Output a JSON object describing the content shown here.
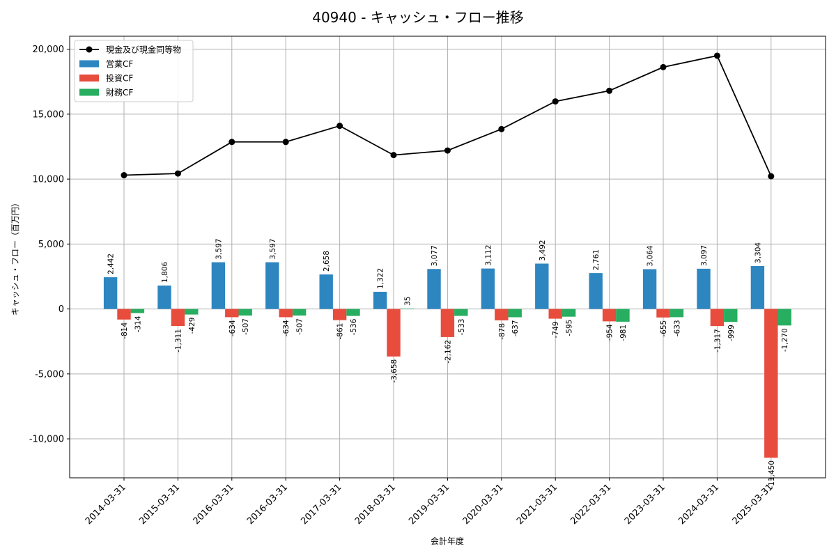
{
  "chart_data": {
    "type": "bar",
    "title": "40940 - キャッシュ・フロー推移",
    "xlabel": "会計年度",
    "ylabel": "キャッシュ・フロー（百万円）",
    "ylim": [
      -13000,
      21000
    ],
    "yticks": [
      -10000,
      -5000,
      0,
      5000,
      10000,
      15000,
      20000
    ],
    "ytick_labels": [
      "-10,000",
      "-5,000",
      "0",
      "5,000",
      "10,000",
      "15,000",
      "20,000"
    ],
    "grid": true,
    "legend_position": "top-left",
    "categories": [
      "2014-03-31",
      "2015-03-31",
      "2016-03-31",
      "2016-03-31",
      "2017-03-31",
      "2018-03-31",
      "2019-03-31",
      "2020-03-31",
      "2021-03-31",
      "2022-03-31",
      "2023-03-31",
      "2024-03-31",
      "2025-03-31"
    ],
    "series": [
      {
        "name": "営業CF",
        "kind": "bar",
        "color": "#2e86c1",
        "values": [
          2442,
          1806,
          3597,
          3597,
          2658,
          1322,
          3077,
          3112,
          3492,
          2761,
          3064,
          3097,
          3304
        ],
        "labels": [
          "2,442",
          "1,806",
          "3,597",
          "3,597",
          "2,658",
          "1,322",
          "3,077",
          "3,112",
          "3,492",
          "2,761",
          "3,064",
          "3,097",
          "3,304"
        ]
      },
      {
        "name": "投資CF",
        "kind": "bar",
        "color": "#e74c3c",
        "values": [
          -814,
          -1311,
          -634,
          -634,
          -861,
          -3658,
          -2162,
          -878,
          -749,
          -954,
          -655,
          -1317,
          -11450
        ],
        "labels": [
          "-814",
          "-1,311",
          "-634",
          "-634",
          "-861",
          "-3,658",
          "-2,162",
          "-878",
          "-749",
          "-954",
          "-655",
          "-1,317",
          "-11,450"
        ]
      },
      {
        "name": "財務CF",
        "kind": "bar",
        "color": "#27ae60",
        "values": [
          -314,
          -429,
          -507,
          -507,
          -536,
          35,
          -533,
          -637,
          -595,
          -981,
          -633,
          -999,
          -1270
        ],
        "labels": [
          "-314",
          "-429",
          "-507",
          "-507",
          "-536",
          "35",
          "-533",
          "-637",
          "-595",
          "-981",
          "-633",
          "-999",
          "-1,270"
        ]
      },
      {
        "name": "現金及び現金同等物",
        "kind": "line",
        "color": "#000000",
        "values": [
          10300,
          10430,
          12860,
          12860,
          14100,
          11850,
          12200,
          13850,
          15980,
          16800,
          18620,
          19500,
          10220
        ]
      }
    ]
  }
}
